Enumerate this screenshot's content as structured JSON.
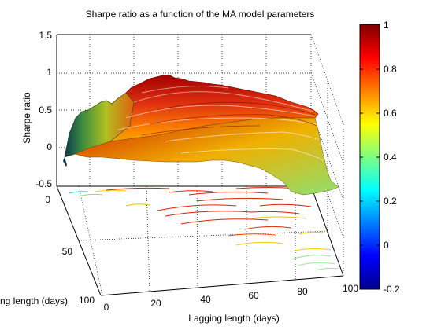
{
  "chart_data": {
    "type": "surface3d",
    "title": "Sharpe ratio as a function of the MA model parameters",
    "xlabel": "Lagging length (days)",
    "ylabel": "Leading length (days)",
    "zlabel": "Sharpe ratio",
    "xlim": [
      0,
      100
    ],
    "ylim": [
      0,
      100
    ],
    "zlim": [
      -0.5,
      1.5
    ],
    "x_ticks": [
      "0",
      "20",
      "40",
      "60",
      "80",
      "100"
    ],
    "y_ticks": [
      "0",
      "50",
      "100"
    ],
    "z_ticks": [
      "-0.5",
      "0",
      "0.5",
      "1",
      "1.5"
    ],
    "colorbar": {
      "min": -0.2,
      "max": 1,
      "ticks": [
        "1",
        "0.8",
        "0.6",
        "0.4",
        "0.2",
        "0",
        "-0.2"
      ],
      "colormap": "jet"
    },
    "grid": true,
    "contour_projection": true,
    "surface_profile_along_x": {
      "x": [
        0,
        5,
        10,
        15,
        20,
        25,
        30,
        35,
        40,
        45,
        50,
        55,
        60,
        65,
        70,
        75,
        80,
        85,
        90,
        95,
        100
      ],
      "z": [
        0.0,
        0.55,
        0.75,
        0.8,
        0.85,
        0.9,
        0.95,
        0.95,
        0.92,
        0.9,
        0.88,
        0.87,
        0.85,
        0.83,
        0.8,
        0.75,
        0.7,
        0.6,
        0.5,
        0.4,
        0.3
      ]
    }
  }
}
